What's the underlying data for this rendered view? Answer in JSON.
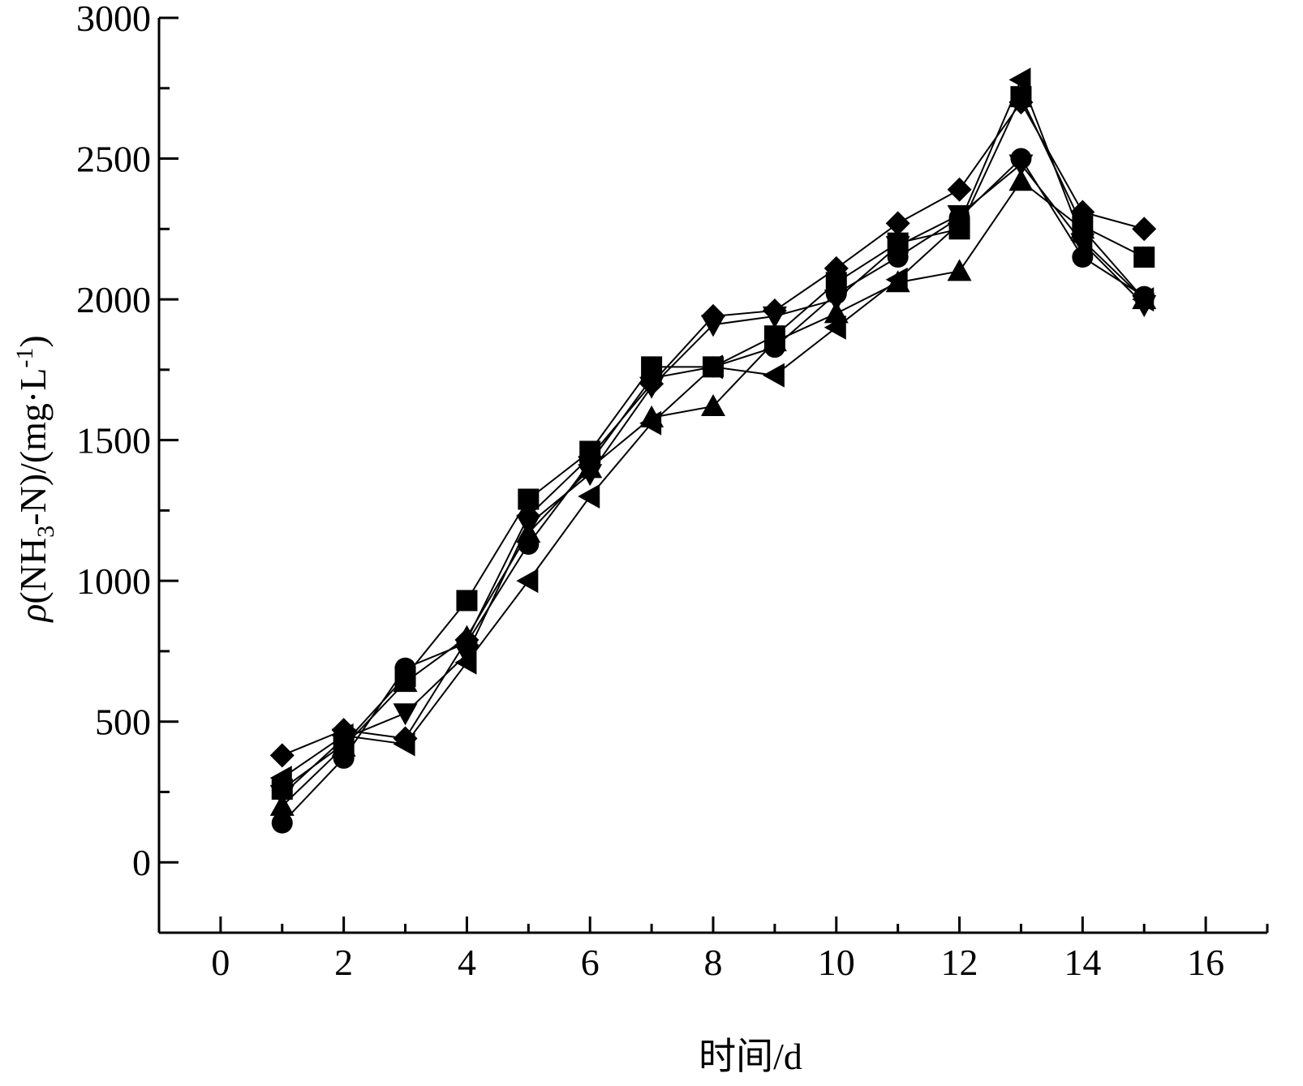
{
  "chart_data": {
    "type": "line",
    "xlabel": "时间/d",
    "ylabel": {
      "prefix": "ρ",
      "main": "(NH",
      "sub": "3",
      "mid": "-N)/(mg·L",
      "sup": "-1",
      "end": ")"
    },
    "xlim": [
      -1,
      17
    ],
    "ylim": [
      -250,
      3000
    ],
    "x_ticks": [
      0,
      2,
      4,
      6,
      8,
      10,
      12,
      14,
      16
    ],
    "y_ticks": [
      0,
      500,
      1000,
      1500,
      2000,
      2500,
      3000
    ],
    "x_tick_labels": [
      "0",
      "2",
      "4",
      "6",
      "8",
      "10",
      "12",
      "14",
      "16"
    ],
    "y_tick_labels": [
      "0",
      "500",
      "1000",
      "1500",
      "2000",
      "2500",
      "3000"
    ],
    "grid": false,
    "x": [
      1,
      2,
      3,
      4,
      5,
      6,
      7,
      8,
      9,
      10,
      11,
      12,
      13,
      14,
      15
    ],
    "series": [
      {
        "marker": "square",
        "values": [
          260,
          420,
          660,
          930,
          1290,
          1460,
          1760,
          1760,
          1870,
          2060,
          2200,
          2250,
          2720,
          2260,
          2150
        ]
      },
      {
        "marker": "circle",
        "values": [
          140,
          370,
          690,
          780,
          1130,
          1420,
          1720,
          1760,
          1830,
          2020,
          2150,
          2290,
          2500,
          2150,
          2010
        ]
      },
      {
        "marker": "triangle-up",
        "values": [
          200,
          410,
          640,
          800,
          1170,
          1400,
          1580,
          1620,
          1850,
          1950,
          2060,
          2100,
          2420,
          2250,
          2000
        ]
      },
      {
        "marker": "triangle-down",
        "values": [
          240,
          440,
          530,
          740,
          1200,
          1380,
          1690,
          1910,
          1940,
          2000,
          2190,
          2300,
          2480,
          2200,
          1980
        ]
      },
      {
        "marker": "diamond",
        "values": [
          380,
          470,
          440,
          790,
          1230,
          1440,
          1700,
          1940,
          1960,
          2110,
          2270,
          2390,
          2700,
          2310,
          2250
        ]
      },
      {
        "marker": "triangle-left",
        "values": [
          300,
          450,
          420,
          710,
          1000,
          1300,
          1560,
          1760,
          1730,
          1900,
          2070,
          2270,
          2780,
          2210,
          2000
        ]
      }
    ]
  }
}
